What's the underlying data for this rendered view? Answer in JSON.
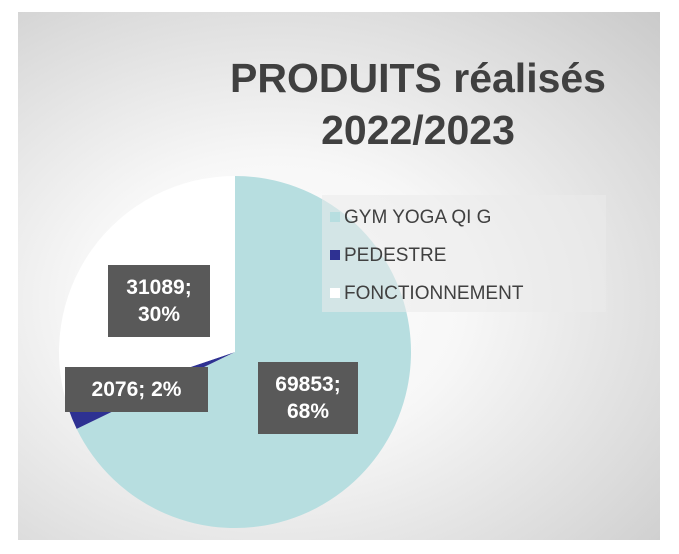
{
  "chart_data": {
    "type": "pie",
    "title": "PRODUITS réalisés 2022/2023",
    "categories": [
      "GYM YOGA QI G",
      "PEDESTRE",
      "FONCTIONNEMENT"
    ],
    "values": [
      69853,
      2076,
      31089
    ],
    "value_labels": [
      "69853; 68%",
      "2076; 2%",
      "31089; 30%"
    ],
    "colors": [
      "#b7dee0",
      "#2e3192",
      "#ffffff"
    ],
    "start_angle": 0,
    "direction": "clockwise"
  }
}
